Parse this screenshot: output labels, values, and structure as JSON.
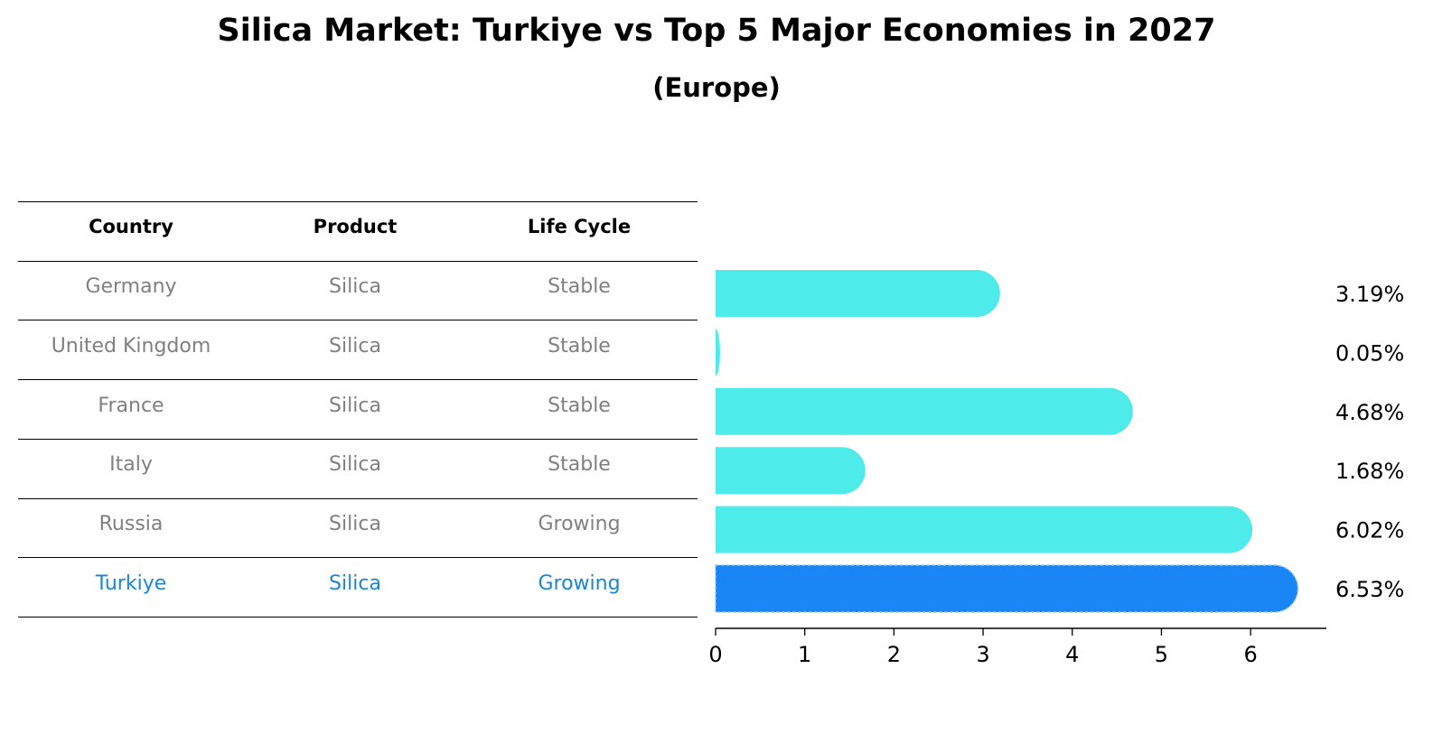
{
  "title": "Silica Market: Turkiye vs Top 5 Major Economies in 2027",
  "subtitle": "(Europe)",
  "table": {
    "headers": [
      "Country",
      "Product",
      "Life Cycle"
    ],
    "rows": [
      {
        "country": "Germany",
        "product": "Silica",
        "life_cycle": "Stable"
      },
      {
        "country": "United Kingdom",
        "product": "Silica",
        "life_cycle": "Stable"
      },
      {
        "country": "France",
        "product": "Silica",
        "life_cycle": "Stable"
      },
      {
        "country": "Italy",
        "product": "Silica",
        "life_cycle": "Stable"
      },
      {
        "country": "Russia",
        "product": "Silica",
        "life_cycle": "Growing"
      },
      {
        "country": "Turkiye",
        "product": "Silica",
        "life_cycle": "Growing"
      }
    ]
  },
  "colors": {
    "bar": "#4deceb",
    "highlight": "#1a86f5",
    "highlight_text": "#1a86d8",
    "muted_text": "#808080"
  },
  "chart_data": {
    "type": "bar",
    "orientation": "horizontal",
    "categories": [
      "Germany",
      "United Kingdom",
      "France",
      "Italy",
      "Russia",
      "Turkiye"
    ],
    "values": [
      3.19,
      0.05,
      4.68,
      1.68,
      6.02,
      6.53
    ],
    "value_labels": [
      "3.19%",
      "0.05%",
      "4.68%",
      "1.68%",
      "6.02%",
      "6.53%"
    ],
    "highlight_category": "Turkiye",
    "xlim": [
      0,
      6.85
    ],
    "xticks": [
      0,
      1,
      2,
      3,
      4,
      5,
      6
    ],
    "xlabel": "",
    "ylabel": ""
  }
}
